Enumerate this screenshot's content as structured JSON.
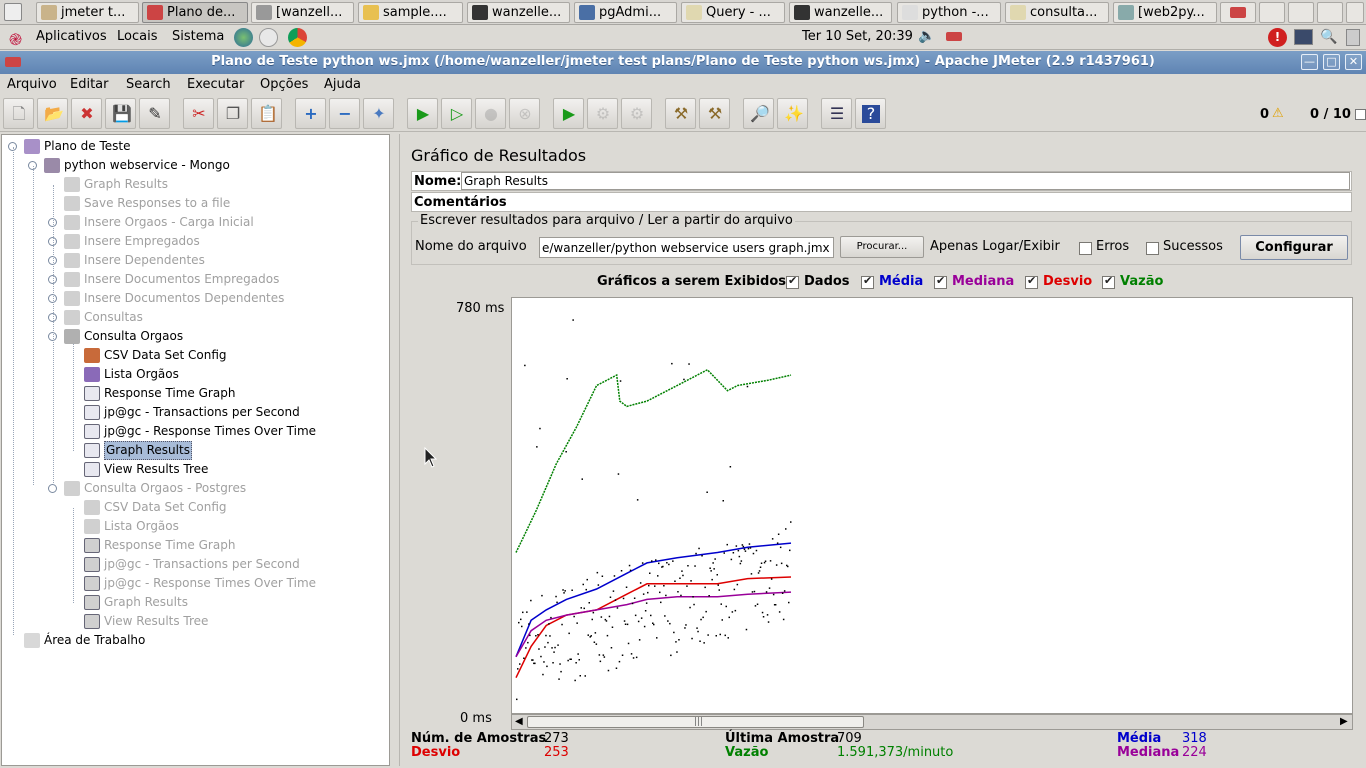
{
  "taskbar": {
    "buttons": [
      {
        "label": "jmeter t..."
      },
      {
        "label": "Plano de..."
      },
      {
        "label": "[wanzell..."
      },
      {
        "label": "sample...."
      },
      {
        "label": "wanzelle..."
      },
      {
        "label": "pgAdmi..."
      },
      {
        "label": "Query - ..."
      },
      {
        "label": "wanzelle..."
      },
      {
        "label": "python -..."
      },
      {
        "label": "consulta..."
      },
      {
        "label": "[web2py..."
      }
    ]
  },
  "panel": {
    "menus": [
      "Aplicativos",
      "Locais",
      "Sistema"
    ],
    "clock": "Ter 10 Set, 20:39"
  },
  "window": {
    "title": "Plano de Teste python ws.jmx (/home/wanzeller/jmeter test plans/Plano de Teste python ws.jmx) - Apache JMeter (2.9 r1437961)",
    "controls": [
      "—",
      "□",
      "✕"
    ]
  },
  "menubar": [
    "Arquivo",
    "Editar",
    "Search",
    "Executar",
    "Opções",
    "Ajuda"
  ],
  "toolbar": {
    "error_count": "0",
    "threads": "0 / 10"
  },
  "tree": [
    {
      "label": "Plano de Teste",
      "level": 0,
      "icon": "test-plan-icon",
      "enabled": true
    },
    {
      "label": "python webservice - Mongo",
      "level": 1,
      "icon": "thread-group-icon",
      "enabled": true
    },
    {
      "label": "Graph Results",
      "level": 2,
      "icon": "listener-icon",
      "enabled": false
    },
    {
      "label": "Save Responses to a file",
      "level": 2,
      "icon": "listener-icon",
      "enabled": false
    },
    {
      "label": "Insere Orgaos - Carga Inicial",
      "level": 2,
      "icon": "controller-icon",
      "enabled": false
    },
    {
      "label": "Insere Empregados",
      "level": 2,
      "icon": "controller-icon",
      "enabled": false
    },
    {
      "label": "Insere Dependentes",
      "level": 2,
      "icon": "controller-icon",
      "enabled": false
    },
    {
      "label": "Insere Documentos Empregados",
      "level": 2,
      "icon": "controller-icon",
      "enabled": false
    },
    {
      "label": "Insere Documentos Dependentes",
      "level": 2,
      "icon": "controller-icon",
      "enabled": false
    },
    {
      "label": "Consultas",
      "level": 2,
      "icon": "controller-icon",
      "enabled": false
    },
    {
      "label": "Consulta Orgaos",
      "level": 2,
      "icon": "controller-icon",
      "enabled": true
    },
    {
      "label": "CSV Data Set Config",
      "level": 3,
      "icon": "csv-config-icon",
      "enabled": true
    },
    {
      "label": "Lista Orgãos",
      "level": 3,
      "icon": "sampler-icon",
      "enabled": true
    },
    {
      "label": "Response Time Graph",
      "level": 3,
      "icon": "graph-listener-icon",
      "enabled": true
    },
    {
      "label": "jp@gc - Transactions per Second",
      "level": 3,
      "icon": "graph-listener-icon",
      "enabled": true
    },
    {
      "label": "jp@gc - Response Times Over Time",
      "level": 3,
      "icon": "graph-listener-icon",
      "enabled": true
    },
    {
      "label": "Graph Results",
      "level": 3,
      "icon": "graph-listener-icon",
      "enabled": true,
      "selected": true
    },
    {
      "label": "View Results Tree",
      "level": 3,
      "icon": "graph-listener-icon",
      "enabled": true
    },
    {
      "label": "Consulta Orgaos - Postgres",
      "level": 2,
      "icon": "controller-icon",
      "enabled": false
    },
    {
      "label": "CSV Data Set Config",
      "level": 3,
      "icon": "csv-config-icon",
      "enabled": false
    },
    {
      "label": "Lista Orgãos",
      "level": 3,
      "icon": "sampler-icon",
      "enabled": false
    },
    {
      "label": "Response Time Graph",
      "level": 3,
      "icon": "graph-listener-icon",
      "enabled": false
    },
    {
      "label": "jp@gc - Transactions per Second",
      "level": 3,
      "icon": "graph-listener-icon",
      "enabled": false
    },
    {
      "label": "jp@gc - Response Times Over Time",
      "level": 3,
      "icon": "graph-listener-icon",
      "enabled": false
    },
    {
      "label": "Graph Results",
      "level": 3,
      "icon": "graph-listener-icon",
      "enabled": false
    },
    {
      "label": "View Results Tree",
      "level": 3,
      "icon": "graph-listener-icon",
      "enabled": false
    },
    {
      "label": "Área de Trabalho",
      "level": 0,
      "icon": "workbench-icon",
      "enabled": true
    }
  ],
  "panel_title": "Gráfico de Resultados",
  "name_field": {
    "label": "Nome:",
    "value": "Graph Results"
  },
  "comments_field": {
    "label": "Comentários:",
    "value": ""
  },
  "file_section": {
    "legend": "Escrever resultados para arquivo / Ler a partir do arquivo",
    "filename_label": "Nome do arquivo",
    "filename_value": "e/wanzeller/python webservice users graph.jmx",
    "browse_label": "Procurar...",
    "log_only_label": "Apenas Logar/Exibir",
    "errors_label": "Erros",
    "errors_checked": false,
    "successes_label": "Sucessos",
    "successes_checked": false,
    "configure_label": "Configurar"
  },
  "graph_options": {
    "label": "Gráficos a serem Exibidos",
    "items": [
      {
        "label": "Dados",
        "color": "#000000",
        "checked": true
      },
      {
        "label": "Média",
        "color": "#0000cc",
        "checked": true
      },
      {
        "label": "Mediana",
        "color": "#990099",
        "checked": true
      },
      {
        "label": "Desvio",
        "color": "#dd0000",
        "checked": true
      },
      {
        "label": "Vazão",
        "color": "#008000",
        "checked": true
      }
    ]
  },
  "chart_data": {
    "type": "line",
    "ylabel_max": "780 ms",
    "ylabel_min": "0 ms",
    "ylim": [
      0,
      780
    ],
    "x": "sample index",
    "sample_count": 273,
    "series": [
      {
        "name": "Vazão",
        "color": "#008000",
        "x": [
          0,
          10,
          20,
          40,
          60,
          80,
          100,
          103,
          110,
          130,
          160,
          190,
          200,
          210,
          220,
          250,
          273
        ],
        "values": [
          300,
          340,
          380,
          470,
          540,
          620,
          640,
          590,
          580,
          590,
          620,
          650,
          630,
          610,
          620,
          630,
          640
        ]
      },
      {
        "name": "Média",
        "color": "#0000cc",
        "x": [
          0,
          15,
          30,
          50,
          80,
          110,
          130,
          160,
          200,
          230,
          273
        ],
        "values": [
          100,
          170,
          190,
          210,
          230,
          260,
          280,
          290,
          300,
          310,
          318
        ]
      },
      {
        "name": "Desvio",
        "color": "#dd0000",
        "x": [
          0,
          15,
          30,
          50,
          80,
          110,
          130,
          160,
          200,
          230,
          273
        ],
        "values": [
          60,
          120,
          160,
          180,
          190,
          220,
          240,
          240,
          240,
          250,
          253
        ]
      },
      {
        "name": "Mediana",
        "color": "#990099",
        "x": [
          0,
          15,
          30,
          50,
          80,
          110,
          130,
          160,
          200,
          230,
          273
        ],
        "values": [
          100,
          150,
          170,
          180,
          190,
          200,
          210,
          215,
          215,
          220,
          224
        ]
      }
    ]
  },
  "stats": {
    "samples_label": "Núm. de Amostras",
    "samples_value": "273",
    "last_label": "Última Amostra",
    "last_value": "709",
    "avg_label": "Média",
    "avg_value": "318",
    "dev_label": "Desvio",
    "dev_value": "253",
    "throughput_label": "Vazão",
    "throughput_value": "1.591,373/minuto",
    "median_label": "Mediana",
    "median_value": "224"
  }
}
